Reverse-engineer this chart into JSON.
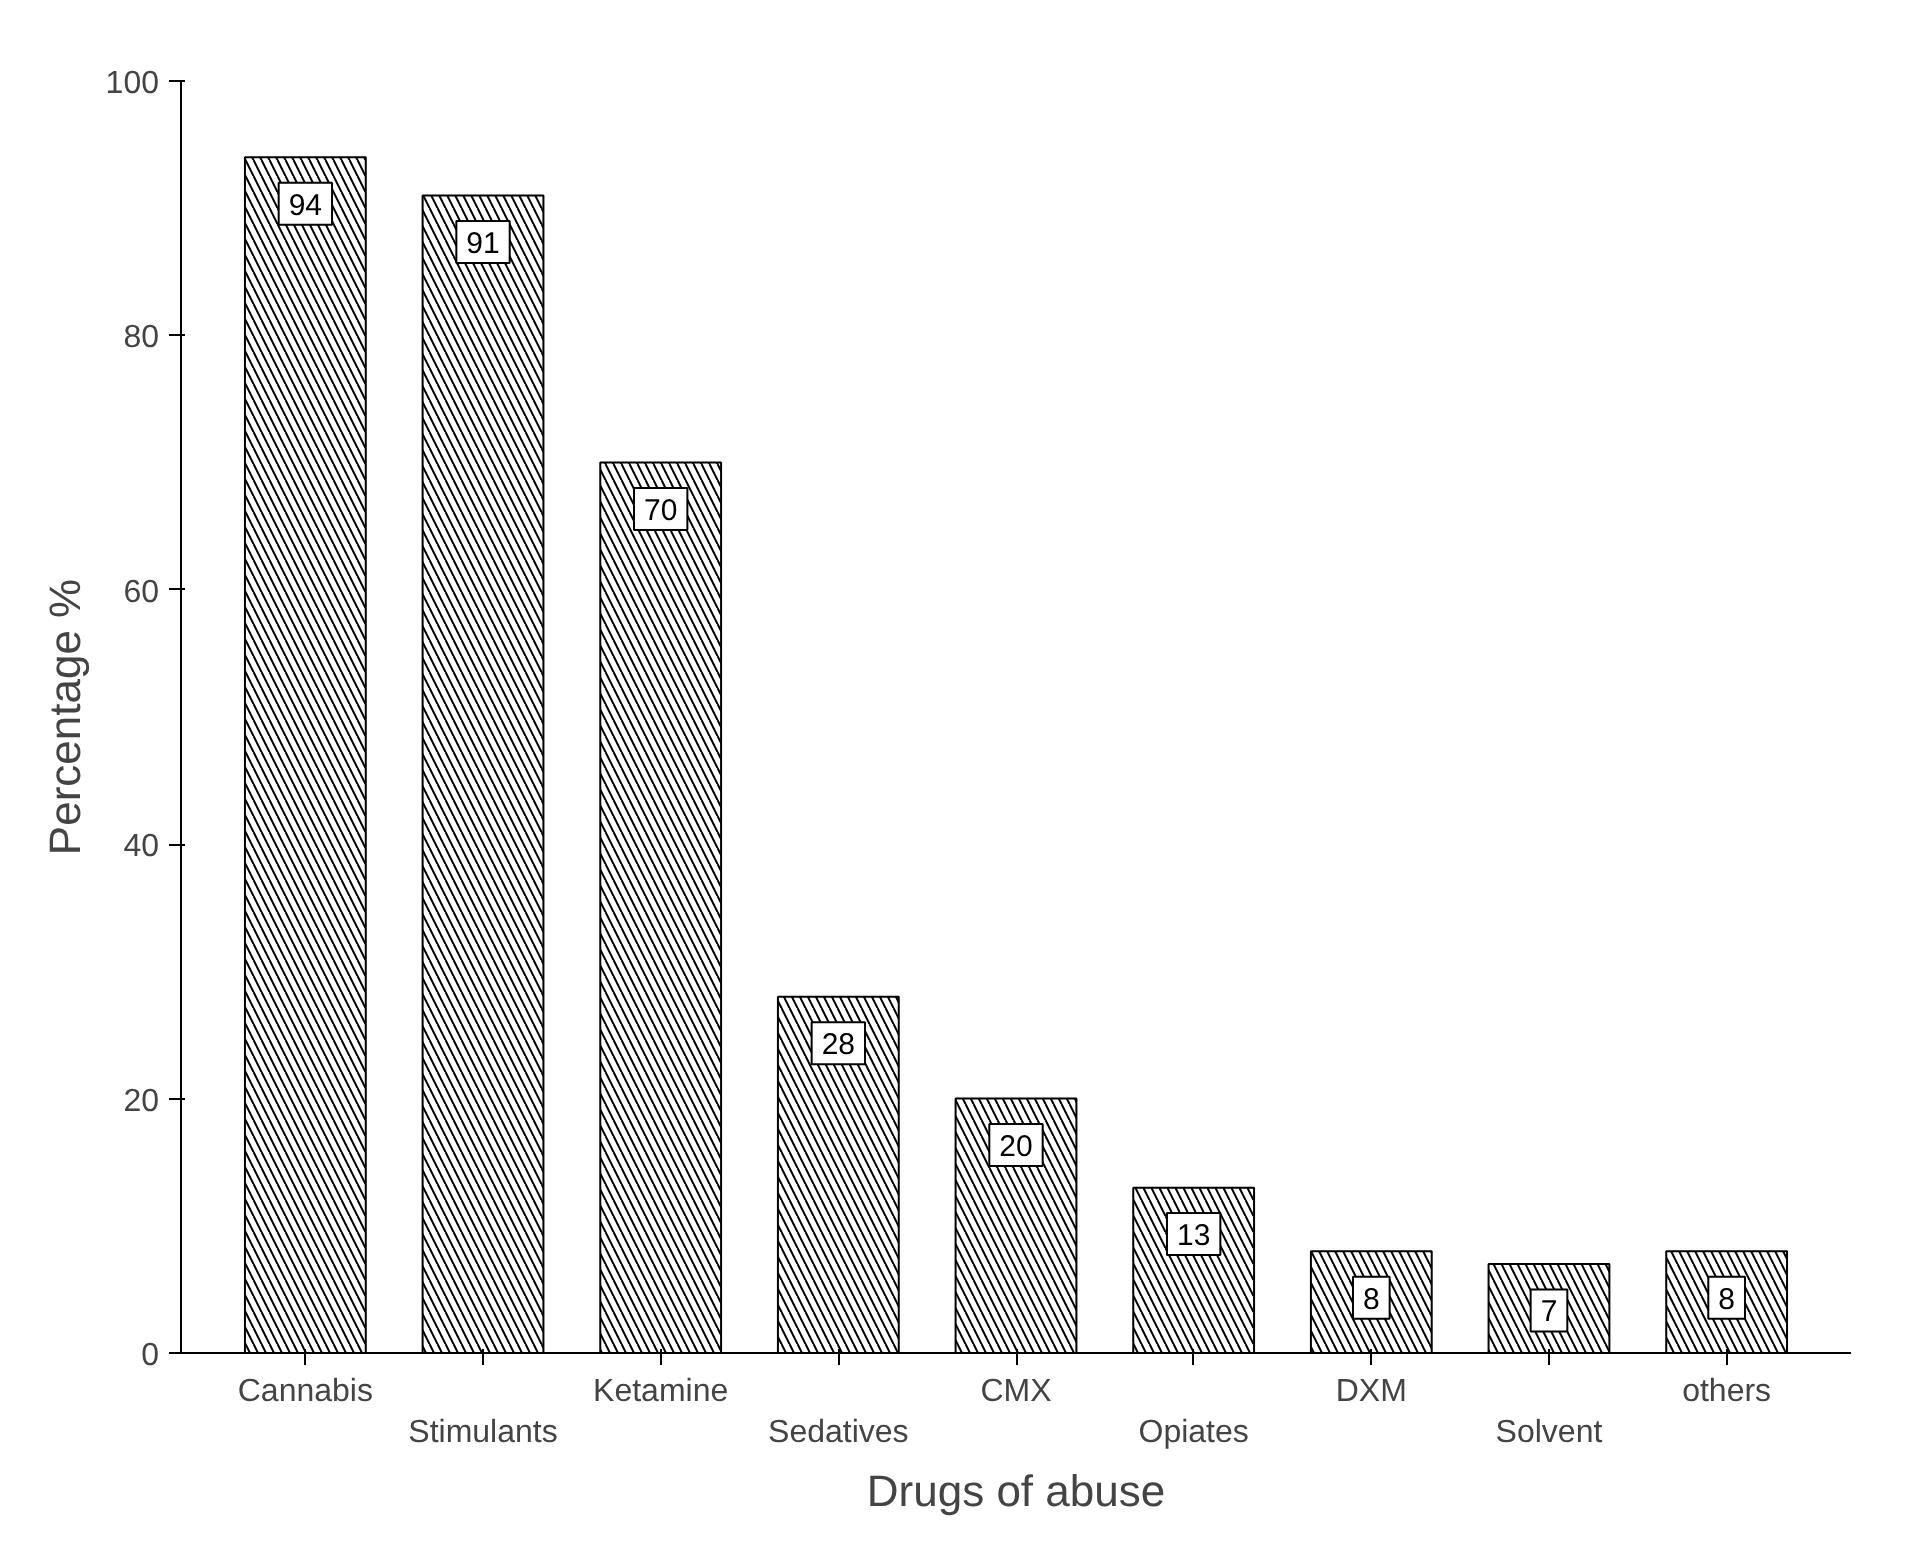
{
  "chart_data": {
    "type": "bar",
    "xlabel": "Drugs of abuse",
    "ylabel": "Percentage %",
    "categories": [
      "Cannabis",
      "Stimulants",
      "Ketamine",
      "Sedatives",
      "CMX",
      "Opiates",
      "DXM",
      "Solvent",
      "others"
    ],
    "values": [
      94,
      91,
      70,
      28,
      20,
      13,
      8,
      7,
      8
    ],
    "color": "#000000",
    "ylim": [
      0,
      100
    ],
    "yticks": [
      0,
      20,
      40,
      60,
      80,
      100
    ],
    "grid": false,
    "data_labels": true
  }
}
